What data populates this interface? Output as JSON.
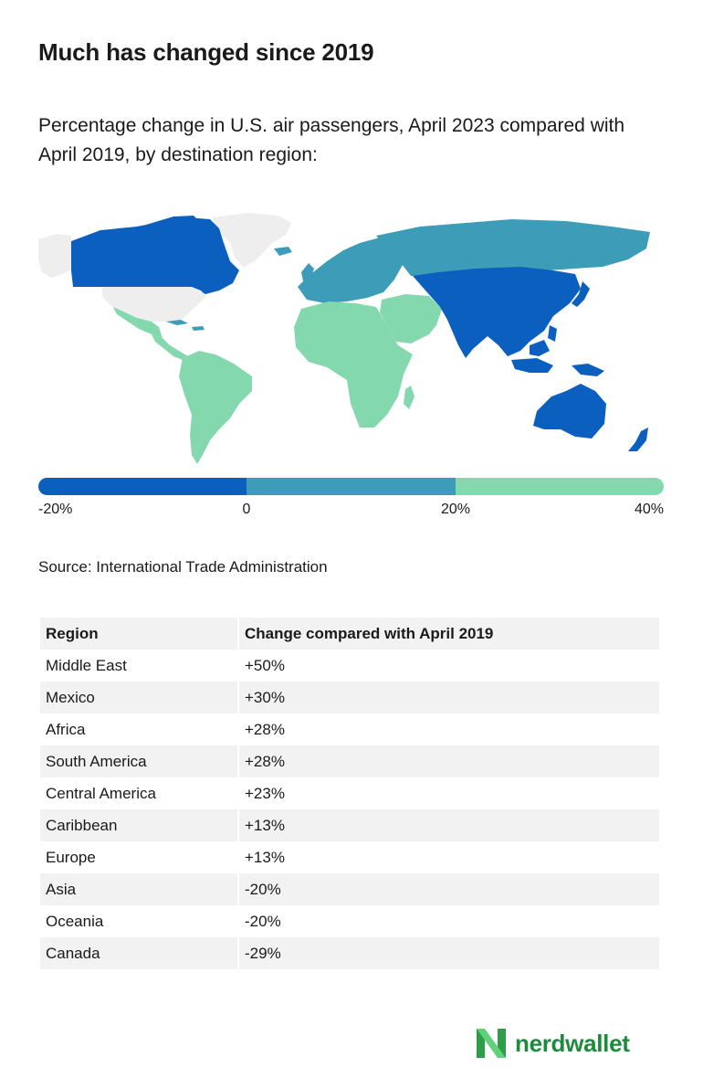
{
  "title": "Much has changed since 2019",
  "subtitle": "Percentage change in U.S. air passengers, April 2023 compared with April 2019, by destination region:",
  "colors": {
    "low": "#0a5fbf",
    "mid": "#3d9db8",
    "high": "#84d8ad",
    "nodata": "#eeeeee"
  },
  "legend": {
    "ticks": [
      "-20%",
      "0",
      "20%",
      "40%"
    ],
    "bins": [
      {
        "from": -20,
        "to": 0,
        "color": "#0a5fbf"
      },
      {
        "from": 0,
        "to": 20,
        "color": "#3d9db8"
      },
      {
        "from": 20,
        "to": 40,
        "color": "#84d8ad"
      }
    ]
  },
  "source": "Source: International Trade Administration",
  "table": {
    "headers": [
      "Region",
      "Change compared with April 2019"
    ],
    "rows": [
      {
        "region": "Middle East",
        "change": "+50%"
      },
      {
        "region": "Mexico",
        "change": "+30%"
      },
      {
        "region": "Africa",
        "change": "+28%"
      },
      {
        "region": "South America",
        "change": "+28%"
      },
      {
        "region": "Central America",
        "change": "+23%"
      },
      {
        "region": "Caribbean",
        "change": "+13%"
      },
      {
        "region": "Europe",
        "change": "+13%"
      },
      {
        "region": "Asia",
        "change": "-20%"
      },
      {
        "region": "Oceania",
        "change": "-20%"
      },
      {
        "region": "Canada",
        "change": "-29%"
      }
    ]
  },
  "brand": {
    "name": "nerdwallet",
    "logo_icon": "nerdwallet-n-logo"
  }
}
